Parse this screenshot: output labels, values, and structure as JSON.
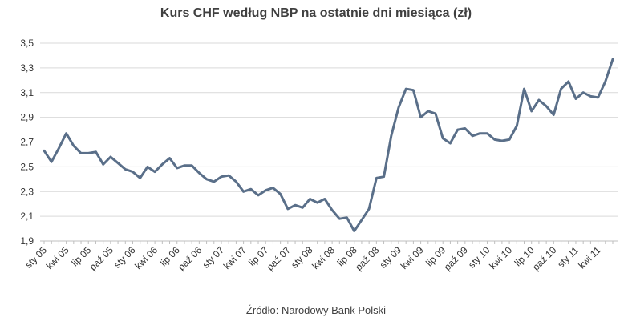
{
  "chart_data": {
    "type": "line",
    "title": "Kurs CHF według NBP na ostatnie dni miesiąca (zł)",
    "source": "Źródło: Narodowy Bank Polski",
    "ylim": [
      1.9,
      3.5
    ],
    "yticks": [
      "1,9",
      "2,1",
      "2,3",
      "2,5",
      "2,7",
      "2,9",
      "3,1",
      "3,3",
      "3,5"
    ],
    "grid": "horizontal",
    "line_color": "#5a6f89",
    "xtick_labels": [
      "sty 05",
      "kwi 05",
      "lip 05",
      "paź 05",
      "sty 06",
      "kwi 06",
      "lip 06",
      "paź 06",
      "sty 07",
      "kwi 07",
      "lip 07",
      "paź 07",
      "sty 08",
      "kwi 08",
      "lip 08",
      "paź 08",
      "sty 09",
      "kwi 09",
      "lip 09",
      "paź 09",
      "sty 10",
      "kwi 10",
      "lip 10",
      "paź 10",
      "sty 11",
      "kwi 11"
    ],
    "series": [
      {
        "values": [
          2.63,
          2.54,
          2.65,
          2.77,
          2.67,
          2.61,
          2.61,
          2.62,
          2.52,
          2.58,
          2.53,
          2.48,
          2.46,
          2.41,
          2.5,
          2.46,
          2.52,
          2.57,
          2.49,
          2.51,
          2.51,
          2.45,
          2.4,
          2.38,
          2.42,
          2.43,
          2.38,
          2.3,
          2.32,
          2.27,
          2.31,
          2.33,
          2.28,
          2.16,
          2.19,
          2.17,
          2.24,
          2.21,
          2.24,
          2.15,
          2.08,
          2.09,
          1.98,
          2.07,
          2.16,
          2.41,
          2.42,
          2.75,
          2.98,
          3.13,
          3.12,
          2.9,
          2.95,
          2.93,
          2.73,
          2.69,
          2.8,
          2.81,
          2.75,
          2.77,
          2.77,
          2.72,
          2.71,
          2.72,
          2.83,
          3.13,
          2.95,
          3.04,
          2.99,
          2.92,
          3.13,
          3.19,
          3.05,
          3.1,
          3.07,
          3.06,
          3.19,
          3.37
        ]
      }
    ]
  }
}
